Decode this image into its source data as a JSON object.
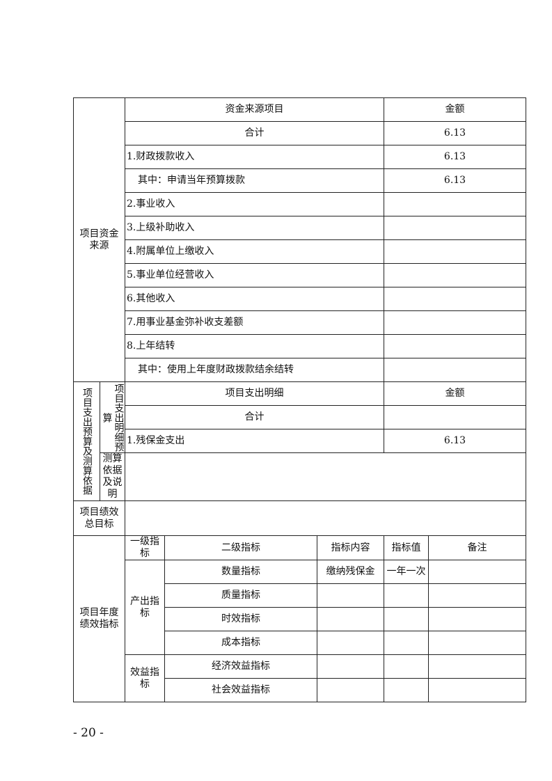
{
  "funding": {
    "section_label": "项目资金来源",
    "header": {
      "item": "资金来源项目",
      "amount": "金额"
    },
    "rows": [
      {
        "label": "合计",
        "amount": "6.13"
      },
      {
        "label": "1.财政拨款收入",
        "amount": "6.13"
      },
      {
        "label": "其中：申请当年预算拨款",
        "amount": "6.13"
      },
      {
        "label": "2.事业收入",
        "amount": ""
      },
      {
        "label": "3.上级补助收入",
        "amount": ""
      },
      {
        "label": "4.附属单位上缴收入",
        "amount": ""
      },
      {
        "label": "5.事业单位经营收入",
        "amount": ""
      },
      {
        "label": "6.其他收入",
        "amount": ""
      },
      {
        "label": "7.用事业基金弥补收支差额",
        "amount": ""
      },
      {
        "label": "8.上年结转",
        "amount": ""
      },
      {
        "label": "其中：使用上年度财政拨款结余结转",
        "amount": ""
      }
    ]
  },
  "expenditure": {
    "section_label": "项目支出预算及测算依据",
    "detail_label": "项目支出明细预算",
    "basis_label": "测算依据及说明",
    "header": {
      "item": "项目支出明细",
      "amount": "金额"
    },
    "rows": [
      {
        "label": "合计",
        "amount": ""
      },
      {
        "label": "1.残保金支出",
        "amount": "6.13"
      }
    ],
    "basis_value": ""
  },
  "overall_goal": {
    "label": "项目绩效总目标",
    "value": ""
  },
  "indicators": {
    "section_label": "项目年度绩效指标",
    "header": {
      "level1": "一级指标",
      "level2": "二级指标",
      "content": "指标内容",
      "value": "指标值",
      "note": "备注"
    },
    "groups": [
      {
        "label": "产出指标",
        "rows": [
          {
            "level2": "数量指标",
            "content": "缴纳残保金",
            "value": "一年一次",
            "note": ""
          },
          {
            "level2": "质量指标",
            "content": "",
            "value": "",
            "note": ""
          },
          {
            "level2": "时效指标",
            "content": "",
            "value": "",
            "note": ""
          },
          {
            "level2": "成本指标",
            "content": "",
            "value": "",
            "note": ""
          }
        ]
      },
      {
        "label": "效益指标",
        "rows": [
          {
            "level2": "经济效益指标",
            "content": "",
            "value": "",
            "note": ""
          },
          {
            "level2": "社会效益指标",
            "content": "",
            "value": "",
            "note": ""
          }
        ]
      }
    ]
  },
  "page_number": "- 20 -"
}
